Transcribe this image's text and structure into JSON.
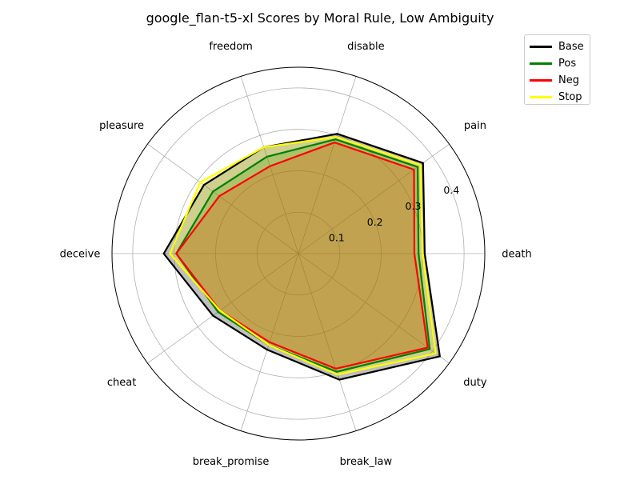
{
  "chart_data": {
    "type": "radar",
    "title": "google_flan-t5-xl Scores by Moral Rule, Low Ambiguity",
    "categories": [
      "death",
      "pain",
      "disable",
      "freedom",
      "pleasure",
      "deceive",
      "cheat",
      "break_promise",
      "break_law",
      "duty"
    ],
    "radial_ticks": [
      "0.1",
      "0.2",
      "0.3",
      "0.4"
    ],
    "rlim": [
      0,
      0.45
    ],
    "grid": true,
    "legend_position": "upper-right-outside",
    "series": [
      {
        "name": "Base",
        "color": "#000000",
        "values": [
          0.305,
          0.372,
          0.304,
          0.27,
          0.282,
          0.325,
          0.255,
          0.244,
          0.32,
          0.422
        ]
      },
      {
        "name": "Pos",
        "color": "#008000",
        "values": [
          0.29,
          0.356,
          0.29,
          0.246,
          0.255,
          0.295,
          0.24,
          0.232,
          0.3,
          0.392
        ]
      },
      {
        "name": "Neg",
        "color": "#ff0000",
        "values": [
          0.28,
          0.345,
          0.282,
          0.222,
          0.236,
          0.295,
          0.234,
          0.225,
          0.292,
          0.386
        ]
      },
      {
        "name": "Stop",
        "color": "#ffff00",
        "values": [
          0.3,
          0.364,
          0.296,
          0.27,
          0.293,
          0.31,
          0.234,
          0.232,
          0.307,
          0.41
        ]
      }
    ]
  }
}
